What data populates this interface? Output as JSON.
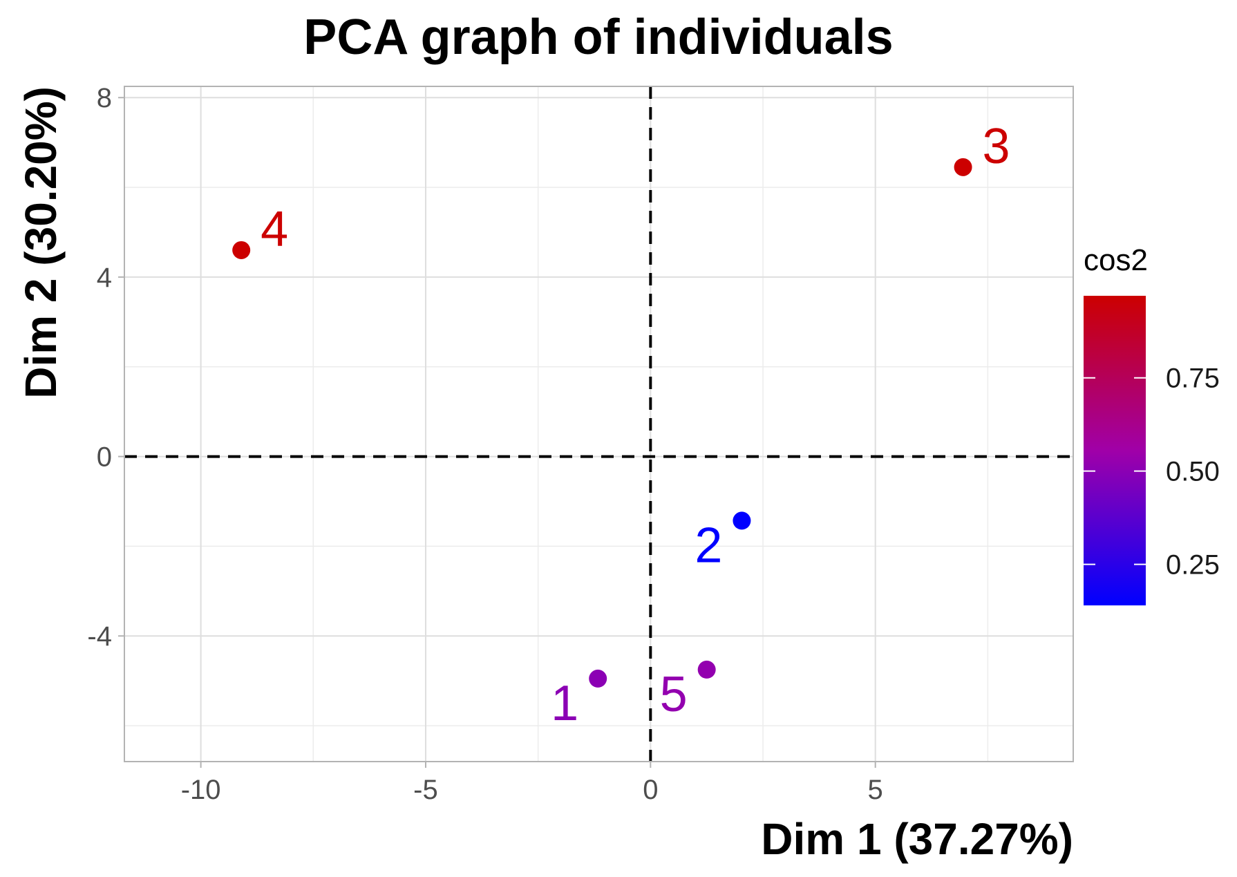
{
  "chart_data": {
    "type": "scatter",
    "title": "PCA graph of individuals",
    "xlabel": "Dim 1 (37.27%)",
    "ylabel": "Dim 2 (30.20%)",
    "xlim": [
      -11.7,
      9.4
    ],
    "ylim": [
      -6.8,
      8.25
    ],
    "xticks": [
      -10,
      -5,
      0,
      5
    ],
    "xtick_labels": [
      "-10",
      "-5",
      "0",
      "5"
    ],
    "yticks": [
      -4,
      0,
      4,
      8
    ],
    "ytick_labels": [
      "-4",
      "0",
      "4",
      "8"
    ],
    "grid": true,
    "reference_lines": {
      "x": 0,
      "y": 0,
      "style": "dashed"
    },
    "points": [
      {
        "label": "1",
        "x": -1.17,
        "y": -4.95,
        "cos2": 0.5
      },
      {
        "label": "2",
        "x": 2.03,
        "y": -1.43,
        "cos2": 0.14
      },
      {
        "label": "3",
        "x": 6.95,
        "y": 6.45,
        "cos2": 0.97
      },
      {
        "label": "4",
        "x": -9.1,
        "y": 4.6,
        "cos2": 0.97
      },
      {
        "label": "5",
        "x": 1.25,
        "y": -4.75,
        "cos2": 0.52
      }
    ],
    "legend": {
      "title": "cos2",
      "placement": "right",
      "range": [
        0.14,
        0.97
      ],
      "ticks": [
        0.25,
        0.5,
        0.75
      ],
      "tick_labels": [
        "0.25",
        "0.50",
        "0.75"
      ],
      "color_low": "#0000FF",
      "color_high": "#CC0000"
    }
  }
}
